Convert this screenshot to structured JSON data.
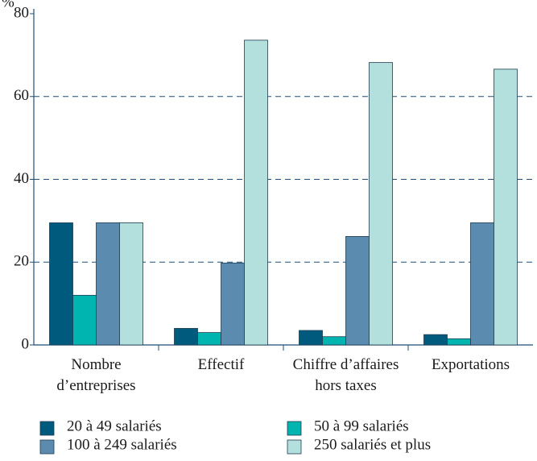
{
  "chart_data": {
    "type": "bar",
    "y_label": "%",
    "categories": [
      "Nombre\nd’entreprises",
      "Effectif",
      "Chiffre d’affaires\nhors taxes",
      "Exportations"
    ],
    "series": [
      {
        "name": "20 à 49 salariés",
        "color": "#005a7e",
        "values": [
          29.5,
          4,
          3.5,
          2.5
        ]
      },
      {
        "name": "50 à 99 salariés",
        "color": "#00b5b0",
        "values": [
          12,
          3,
          2,
          1.5
        ]
      },
      {
        "name": "100 à 249 salariés",
        "color": "#5b8cb0",
        "values": [
          29.5,
          19.8,
          26.2,
          29.5
        ]
      },
      {
        "name": "250 salariés et plus",
        "color": "#b3dfdd",
        "values": [
          29.5,
          73.6,
          68.2,
          66.6
        ]
      }
    ],
    "ylim": [
      0,
      80
    ],
    "yticks": [
      0,
      20,
      40,
      60,
      80
    ],
    "grid": true
  }
}
